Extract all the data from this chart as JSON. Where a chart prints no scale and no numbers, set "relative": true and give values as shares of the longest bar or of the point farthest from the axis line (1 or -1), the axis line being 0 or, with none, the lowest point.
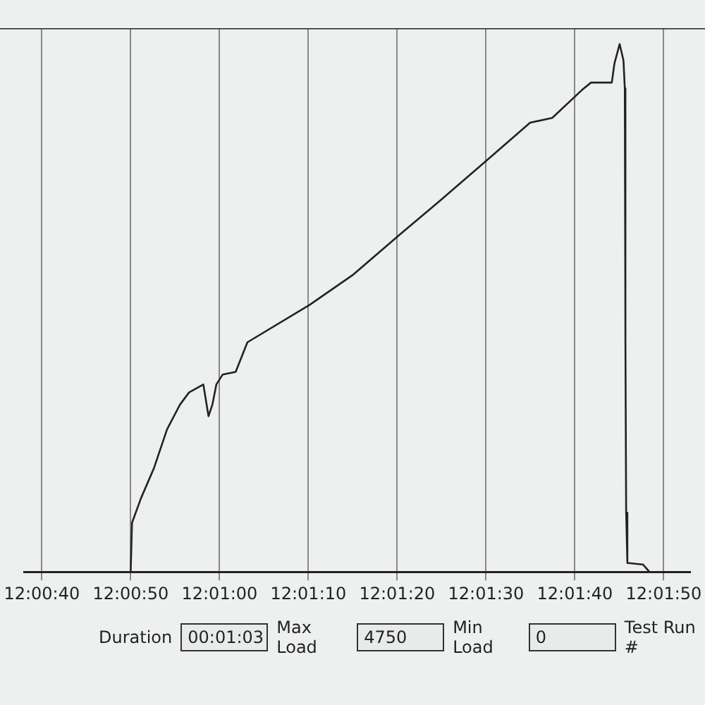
{
  "chart_data": {
    "type": "line",
    "relative": true,
    "grid": "x",
    "legend": false,
    "marker": "none",
    "line_style": "solid",
    "x": [
      12.013483,
      12.013889,
      12.013931,
      12.014214,
      12.014619,
      12.015025,
      12.015431,
      12.015714,
      12.016161,
      12.016322,
      12.016444,
      12.016567,
      12.016767,
      12.017172,
      12.017539,
      12.019486,
      12.020822,
      12.022322,
      12.023539,
      12.025161,
      12.026378,
      12.027069,
      12.028,
      12.028283,
      12.028933,
      12.029014,
      12.029178,
      12.029297,
      12.029339,
      12.029358,
      12.029381,
      12.029419,
      12.029906,
      12.030108,
      12.031122
    ],
    "series": [
      {
        "color": "#222222",
        "values": [
          0,
          0,
          0.093,
          0.14,
          0.197,
          0.27,
          0.317,
          0.34,
          0.355,
          0.295,
          0.317,
          0.355,
          0.374,
          0.379,
          0.435,
          0.506,
          0.562,
          0.64,
          0.702,
          0.787,
          0.851,
          0.86,
          0.913,
          0.927,
          0.927,
          0.963,
          1,
          0.969,
          0.916,
          0.438,
          0.112,
          0.017,
          0.014,
          0,
          0
        ]
      }
    ],
    "xlim": [
      12.010556,
      12.031389
    ],
    "xticks": [
      {
        "value": 12.011111,
        "label": "12:00:40"
      },
      {
        "value": 12.013889,
        "label": "12:00:50"
      },
      {
        "value": 12.016667,
        "label": "12:01:00"
      },
      {
        "value": 12.019444,
        "label": "12:01:10"
      },
      {
        "value": 12.022222,
        "label": "12:01:20"
      },
      {
        "value": 12.025,
        "label": "12:01:30"
      },
      {
        "value": 12.027778,
        "label": "12:01:40"
      },
      {
        "value": 12.030556,
        "label": "12:01:50"
      }
    ],
    "annotations": [
      "Duration",
      "00:01:03",
      "Max Load",
      "4750",
      "Min Load",
      "0",
      "Test Run #"
    ]
  }
}
